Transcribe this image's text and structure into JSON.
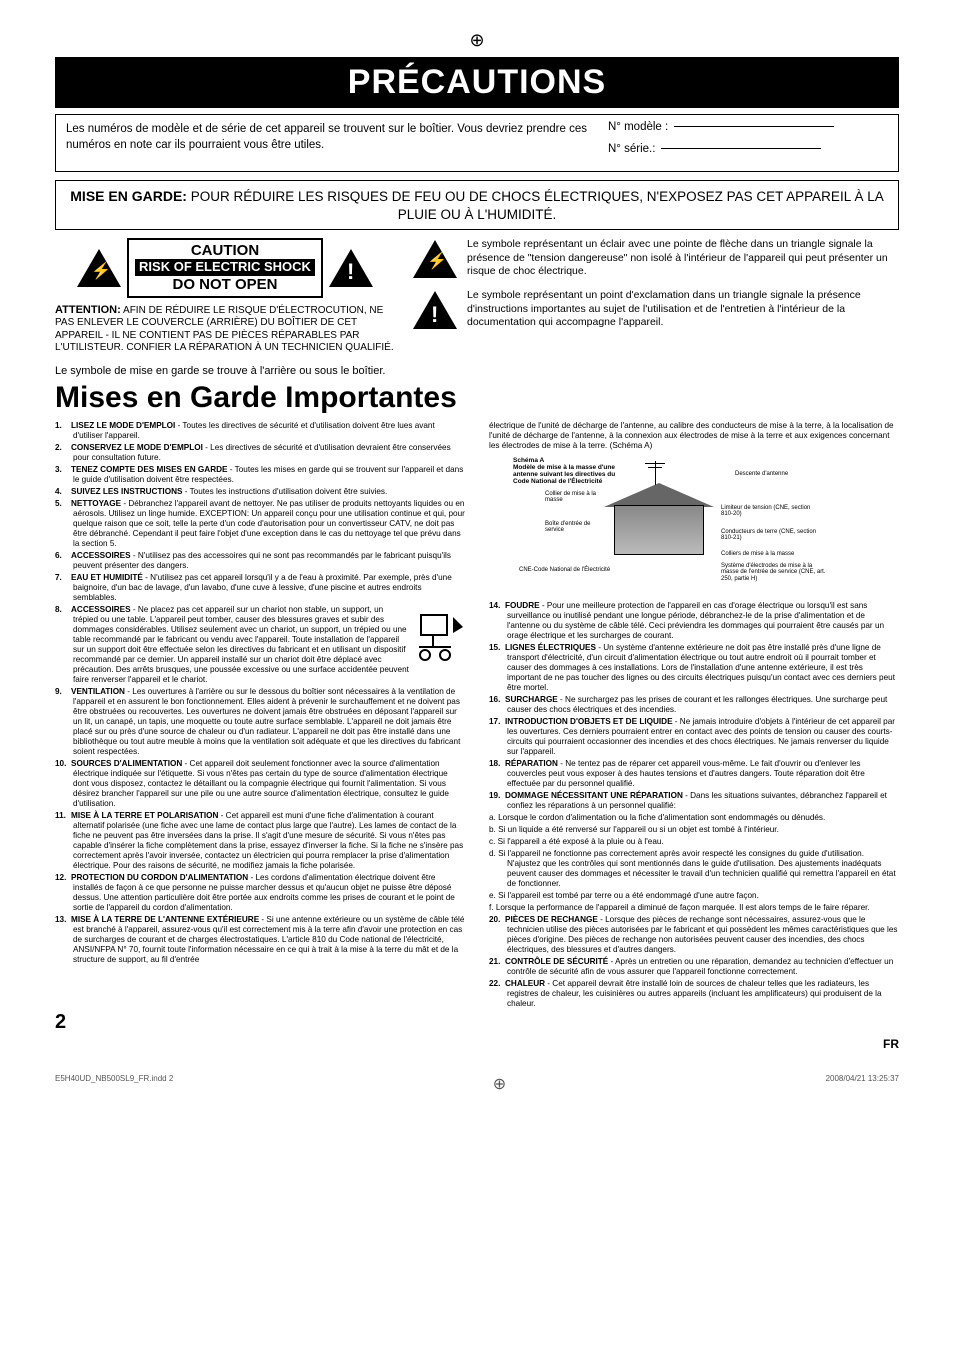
{
  "banner_title": "PRÉCAUTIONS",
  "model_intro": "Les numéros de modèle et de série de cet appareil se trouvent sur le boîtier. Vous devriez prendre ces numéros en note car ils pourraient vous être utiles.",
  "model_label": "N° modèle :",
  "serial_label": "N° série.:",
  "warning_lead": "MISE EN GARDE:",
  "warning_body": "POUR RÉDUIRE LES RISQUES DE FEU OU DE CHOCS ÉLECTRIQUES, N'EXPOSEZ PAS CET APPAREIL À LA PLUIE OU À L'HUMIDITÉ.",
  "caution_sign": {
    "l1": "CAUTION",
    "l2": "RISK OF ELECTRIC SHOCK",
    "l3": "DO NOT OPEN"
  },
  "attention_lead": "ATTENTION:",
  "attention_body": "AFIN DE RÉDUIRE LE RISQUE D'ÉLECTROCUTION, NE PAS ENLEVER LE COUVERCLE (ARRIÈRE) DU BOÎTIER DE CET APPAREIL - IL NE CONTIENT PAS DE PIÈCES RÉPARABLES PAR L'UTILISTEUR. CONFIER LA RÉPARATION À UN TECHNICIEN QUALIFIÉ.",
  "symbol_bolt": "Le symbole représentant un éclair avec une pointe de flèche dans un triangle signale la présence de \"tension dangereuse\" non isolé à l'intérieur de l'appareil qui peut présenter un risque de choc électrique.",
  "symbol_excl": "Le symbole représentant un point d'exclamation dans un triangle signale la présence d'instructions importantes au sujet de l'utilisation et de l'entretien à l'intérieur de la documentation qui accompagne l'appareil.",
  "symbol_note": "Le symbole de mise en garde se trouve à l'arrière ou sous le boîtier.",
  "h2": "Mises en Garde Importantes",
  "items_left": [
    {
      "n": "1.",
      "t": "LISEZ LE MODE D'EMPLOI",
      "b": " - Toutes les directives de sécurité et d'utilisation doivent être lues avant d'utiliser l'appareil."
    },
    {
      "n": "2.",
      "t": "CONSERVEZ LE MODE D'EMPLOI",
      "b": " - Les directives de sécurité et d'utilisation devraient être conservées pour consultation future."
    },
    {
      "n": "3.",
      "t": "TENEZ COMPTE DES MISES EN GARDE",
      "b": " - Toutes les mises en garde qui se trouvent sur l'appareil et dans le guide d'utilisation doivent être respectées."
    },
    {
      "n": "4.",
      "t": "SUIVEZ LES INSTRUCTIONS",
      "b": " - Toutes les instructions d'utilisation doivent être suivies."
    },
    {
      "n": "5.",
      "t": "NETTOYAGE",
      "b": " - Débranchez l'appareil avant de nettoyer. Ne pas utiliser de produits nettoyants liquides ou en aérosols. Utilisez un linge humide. EXCEPTION: Un appareil conçu pour une utilisation continue et qui, pour quelque raison que ce soit, telle la perte d'un code d'autorisation pour un convertisseur CATV, ne doit pas être débranché. Cependant il peut faire l'objet d'une exception dans le cas du nettoyage tel que prévu dans la section 5."
    },
    {
      "n": "6.",
      "t": "ACCESSOIRES",
      "b": " - N'utilisez pas des accessoires qui ne sont pas recommandés par le fabricant puisqu'ils peuvent présenter des dangers."
    },
    {
      "n": "7.",
      "t": "EAU ET HUMIDITÉ",
      "b": " - N'utilisez pas cet appareil lorsqu'il y a de l'eau à proximité. Par exemple, près d'une baignoire, d'un bac de lavage, d'un lavabo, d'une cuve à lessive, d'une piscine et autres endroits semblables."
    },
    {
      "n": "8.",
      "t": "ACCESSOIRES",
      "b": " - Ne placez pas cet appareil sur un chariot non stable, un support, un trépied ou une table. L'appareil peut tomber, causer des blessures graves et subir des dommages considérables. Utilisez seulement avec un chariot, un support, un trépied ou une table recommandé par le fabricant ou vendu avec l'appareil. Toute installation de l'appareil sur un support doit être effectuée selon les directives du fabricant et en utilisant un dispositif recommandé par ce dernier. Un appareil installé sur un chariot doit être déplacé avec précaution. Des arrêts brusques, une poussée excessive ou une surface accidentée peuvent faire renverser l'appareil et le chariot."
    },
    {
      "n": "9.",
      "t": "VENTILATION",
      "b": " - Les ouvertures à l'arrière ou sur le dessous du boîtier sont nécessaires à la ventilation de l'appareil et en assurent le bon fonctionnement. Elles aident à prévenir le surchauffement et ne doivent pas être obstruées ou recouvertes. Les ouvertures ne doivent jamais être obstruées en déposant l'appareil sur un lit, un canapé, un tapis, une moquette ou toute autre surface semblable. L'appareil ne doit jamais être placé sur ou près d'une source de chaleur ou d'un radiateur. L'appareil ne doit pas être installé dans une bibliothèque ou tout autre meuble à moins que la ventilation soit adéquate et que les directives du fabricant soient respectées."
    },
    {
      "n": "10.",
      "t": "SOURCES D'ALIMENTATION",
      "b": " - Cet appareil doit seulement fonctionner avec la source d'alimentation électrique indiquée sur l'étiquette. Si vous n'êtes pas certain du type de source d'alimentation électrique dont vous disposez, contactez le détaillant ou la compagnie électrique qui fournit l'alimentation. Si vous désirez brancher l'appareil sur une pile ou une autre source d'alimentation électrique, consultez le guide d'utilisation."
    },
    {
      "n": "11.",
      "t": "MISE À LA TERRE ET POLARISATION",
      "b": " - Cet appareil est muni d'une fiche d'alimentation à courant alternatif polarisée (une fiche avec une lame de contact plus large que l'autre). Les lames de contact de la fiche ne peuvent pas être inversées dans la prise. Il s'agit d'une mesure de sécurité. Si vous n'êtes pas capable d'insérer la fiche complètement dans la prise, essayez d'inverser la fiche. Si la fiche ne s'insère pas correctement après l'avoir inversée, contactez un électricien qui pourra remplacer la prise d'alimentation électrique. Pour des raisons de sécurité, ne modifiez jamais la fiche polarisée."
    },
    {
      "n": "12.",
      "t": "PROTECTION DU CORDON D'ALIMENTATION",
      "b": " - Les cordons d'alimentation électrique doivent être installés de façon à ce que personne ne puisse marcher dessus et qu'aucun objet ne puisse être déposé dessus. Une attention particulière doit être portée aux endroits comme les prises de courant et le point de sortie de l'appareil du cordon d'alimentation."
    },
    {
      "n": "13.",
      "t": "MISE À LA TERRE DE L'ANTENNE EXTÉRIEURE",
      "b": " - Si une antenne extérieure ou un système de câble télé est branché à l'appareil, assurez-vous qu'il est correctement mis à la terre afin d'avoir une protection en cas de surcharges de courant et de charges électrostatiques. L'article 810 du Code national de l'électricité, ANSI/NFPA N° 70, fournit toute l'information nécessaire en ce qui à trait à la mise à la terre du mât et de la structure de support, au fil d'entrée"
    }
  ],
  "right_intro": "électrique de l'unité de décharge de l'antenne, au calibre des conducteurs de mise à la terre, à la localisation de l'unité de décharge de l'antenne, à la connexion aux électrodes de mise à la terre et aux exigences concernant les électrodes de mise à la terre. (Schéma A)",
  "diagram": {
    "title": "Schéma A\nModèle de mise à la masse d'une antenne suivant les directives du Code National de l'Électricité",
    "l_clamp": "Collier de mise à la masse",
    "l_box": "Boîte d'entrée de service",
    "l_cne": "CNE-Code National de l'Électricité",
    "l_lead": "Descente d'antenne",
    "l_disc": "Limiteur de tension (CNE, section 810-20)",
    "l_cond": "Conducteurs de terre (CNE, section 810-21)",
    "l_clamps2": "Colliers de mise à la masse",
    "l_elec": "Système d'électrodes de mise à la masse de l'entrée de service (CNE, art. 250, partie H)"
  },
  "items_right": [
    {
      "n": "14.",
      "t": "FOUDRE",
      "b": " - Pour une meilleure protection de l'appareil en cas d'orage électrique ou lorsqu'il est sans surveillance ou inutilisé pendant une longue période, débranchez-le de la prise d'alimentation et de l'antenne ou du système de câble télé. Ceci préviendra les dommages qui pourraient être causés par un orage électrique et les surcharges de courant."
    },
    {
      "n": "15.",
      "t": "LIGNES ÉLECTRIQUES",
      "b": " - Un système d'antenne extérieure ne doit pas être installé près d'une ligne de transport d'électricité, d'un circuit d'alimentation électrique ou tout autre endroit où il pourrait tomber et causer des dommages à ces installations. Lors de l'installation d'une antenne extérieure, il est très important de ne pas toucher des lignes ou des circuits électriques puisqu'un contact avec ces derniers peut être mortel."
    },
    {
      "n": "16.",
      "t": "SURCHARGE",
      "b": " - Ne surchargez pas les prises de courant et les rallonges électriques. Une surcharge peut causer des chocs électriques et des incendies."
    },
    {
      "n": "17.",
      "t": "INTRODUCTION D'OBJETS ET DE LIQUIDE",
      "b": " - Ne jamais introduire d'objets à l'intérieur de cet appareil par les ouvertures. Ces derniers pourraient entrer en contact avec des points de tension ou causer des courts-circuits qui pourraient occasionner des incendies et des chocs électriques. Ne jamais renverser du liquide sur l'appareil."
    },
    {
      "n": "18.",
      "t": "RÉPARATION",
      "b": " - Ne tentez pas de réparer cet appareil vous-même. Le fait d'ouvrir ou d'enlever les couvercles peut vous exposer à des hautes tensions et d'autres dangers. Toute réparation doit être effectuée par du personnel qualifié."
    },
    {
      "n": "19.",
      "t": "DOMMAGE NÉCESSITANT UNE RÉPARATION",
      "b": " - Dans les situations suivantes, débranchez l'appareil et confiez les réparations à un personnel qualifié:"
    },
    {
      "n": "20.",
      "t": "PIÈCES DE RECHANGE",
      "b": " - Lorsque des pièces de rechange sont nécessaires, assurez-vous que le technicien utilise des pièces autorisées par le fabricant et qui possèdent les mêmes caractéristiques que les pièces d'origine. Des pièces de rechange non autorisées peuvent causer des incendies, des chocs électriques, des blessures et d'autres dangers."
    },
    {
      "n": "21.",
      "t": "CONTRÔLE DE SÉCURITÉ",
      "b": " - Après un entretien ou une réparation, demandez au technicien d'effectuer un contrôle de sécurité afin de vous assurer que l'appareil fonctionne correctement."
    },
    {
      "n": "22.",
      "t": "CHALEUR",
      "b": " - Cet appareil devrait être installé loin de sources de chaleur telles que les radiateurs, les registres de chaleur, les cuisinières ou autres appareils (incluant les amplificateurs) qui produisent de la chaleur."
    }
  ],
  "sub19": [
    "a.   Lorsque le cordon d'alimentation ou la fiche d'alimentation sont endommagés ou dénudés.",
    "b.   Si un liquide a été renversé sur l'appareil ou si un objet est tombé à l'intérieur.",
    "c.   Si l'appareil a été exposé à la pluie ou à l'eau.",
    "d.   Si l'appareil ne fonctionne pas correctement après avoir respecté les consignes du guide d'utilisation. N'ajustez que les contrôles qui sont mentionnés dans le guide d'utilisation. Des ajustements inadéquats peuvent causer des dommages et nécessiter le travail d'un technicien qualifié qui remettra l'appareil en état de fonctionner.",
    "e.   Si l'appareil est tombé par terre ou a été endommagé d'une autre façon.",
    "f.    Lorsque la performance de l'appareil a diminué de façon marquée. Il est alors temps de le faire réparer."
  ],
  "page_num": "2",
  "page_lang": "FR",
  "footer_left": "E5H40UD_NB500SL9_FR.indd   2",
  "footer_right": "2008/04/21   13:25:37"
}
